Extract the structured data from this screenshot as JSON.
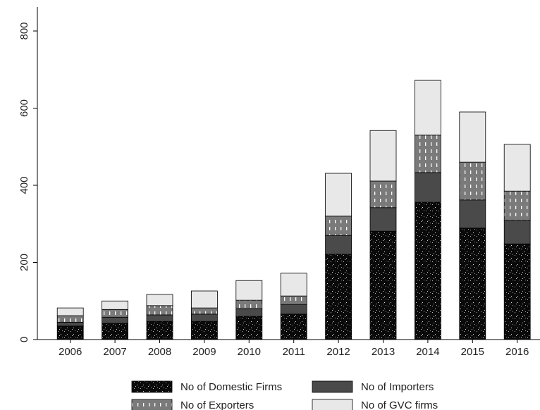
{
  "chart_data": {
    "type": "stacked_bar",
    "categories": [
      "2006",
      "2007",
      "2008",
      "2009",
      "2010",
      "2011",
      "2012",
      "2013",
      "2014",
      "2015",
      "2016"
    ],
    "series": [
      {
        "name": "No of Domestic Firms",
        "color": "#0a0a0a",
        "values": [
          35,
          42,
          47,
          47,
          60,
          66,
          221,
          281,
          356,
          289,
          248
        ]
      },
      {
        "name": "No of Importers",
        "color": "#4a4a4a",
        "values": [
          10,
          16,
          17,
          19,
          20,
          25,
          49,
          61,
          77,
          73,
          61
        ]
      },
      {
        "name": "No of Exporters",
        "color": "#7a7a7a",
        "values": [
          17,
          20,
          24,
          16,
          22,
          22,
          50,
          69,
          97,
          98,
          76
        ]
      },
      {
        "name": "No of GVC firms",
        "color": "#e8e8e8",
        "values": [
          20,
          22,
          29,
          44,
          51,
          59,
          111,
          131,
          142,
          130,
          121
        ]
      }
    ],
    "ylim": [
      0,
      800
    ],
    "yticks": [
      0,
      200,
      400,
      600,
      800
    ],
    "grid": false
  }
}
